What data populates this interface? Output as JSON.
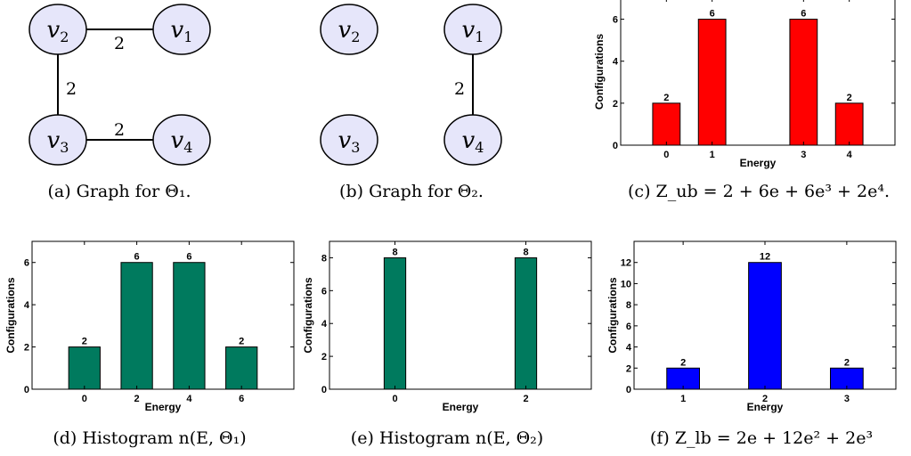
{
  "panels": {
    "a": {
      "caption": "(a)  Graph for Θ₁.",
      "nodes": [
        {
          "id": "v2",
          "base": "v",
          "sub": "2"
        },
        {
          "id": "v1",
          "base": "v",
          "sub": "1"
        },
        {
          "id": "v3",
          "base": "v",
          "sub": "3"
        },
        {
          "id": "v4",
          "base": "v",
          "sub": "4"
        }
      ],
      "edges": [
        {
          "from": "v2",
          "to": "v1",
          "weight": "2"
        },
        {
          "from": "v2",
          "to": "v3",
          "weight": "2"
        },
        {
          "from": "v3",
          "to": "v4",
          "weight": "2"
        }
      ]
    },
    "b": {
      "caption": "(b)  Graph for Θ₂.",
      "nodes": [
        {
          "id": "v2",
          "base": "v",
          "sub": "2"
        },
        {
          "id": "v1",
          "base": "v",
          "sub": "1"
        },
        {
          "id": "v3",
          "base": "v",
          "sub": "3"
        },
        {
          "id": "v4",
          "base": "v",
          "sub": "4"
        }
      ],
      "edges": [
        {
          "from": "v1",
          "to": "v4",
          "weight": "2"
        }
      ]
    },
    "c": {
      "caption": "(c)  Z_ub = 2 + 6e + 6e³ + 2e⁴."
    },
    "d": {
      "caption": "(d)  Histogram n(E, Θ₁)"
    },
    "e": {
      "caption": "(e)  Histogram n(E, Θ₂)"
    },
    "f": {
      "caption": "(f)  Z_lb = 2e + 12e² + 2e³"
    }
  },
  "chart_data": [
    {
      "id": "c",
      "type": "bar",
      "categories": [
        "0",
        "1",
        "3",
        "4"
      ],
      "x": [
        0,
        1,
        3,
        4
      ],
      "values": [
        2,
        6,
        6,
        2
      ],
      "data_labels": [
        "2",
        "6",
        "6",
        "2"
      ],
      "xlabel": "Energy",
      "ylabel": "Configurations",
      "xlim": [
        -1,
        5
      ],
      "ylim": [
        0,
        7
      ],
      "yticks": [
        0,
        2,
        4,
        6
      ],
      "color": "#ff0000"
    },
    {
      "id": "d",
      "type": "bar",
      "categories": [
        "0",
        "2",
        "4",
        "6"
      ],
      "x": [
        0,
        2,
        4,
        6
      ],
      "values": [
        2,
        6,
        6,
        2
      ],
      "data_labels": [
        "2",
        "6",
        "6",
        "2"
      ],
      "xlabel": "Energy",
      "ylabel": "Configurations",
      "xlim": [
        -2,
        8
      ],
      "ylim": [
        0,
        7
      ],
      "yticks": [
        0,
        2,
        4,
        6
      ],
      "color": "#007a5e"
    },
    {
      "id": "e",
      "type": "bar",
      "categories": [
        "0",
        "2"
      ],
      "x": [
        0,
        2
      ],
      "values": [
        8,
        8
      ],
      "data_labels": [
        "8",
        "8"
      ],
      "xlabel": "Energy",
      "ylabel": "Configurations",
      "xlim": [
        -1,
        3
      ],
      "ylim": [
        0,
        9
      ],
      "yticks": [
        0,
        2,
        4,
        6,
        8
      ],
      "color": "#007a5e"
    },
    {
      "id": "f",
      "type": "bar",
      "categories": [
        "1",
        "2",
        "3"
      ],
      "x": [
        1,
        2,
        3
      ],
      "values": [
        2,
        12,
        2
      ],
      "data_labels": [
        "2",
        "12",
        "2"
      ],
      "xlabel": "Energy",
      "ylabel": "Configurations",
      "xlim": [
        0.4,
        3.6
      ],
      "ylim": [
        0,
        14
      ],
      "yticks": [
        0,
        2,
        4,
        6,
        8,
        10,
        12
      ],
      "color": "#0000ff"
    }
  ]
}
